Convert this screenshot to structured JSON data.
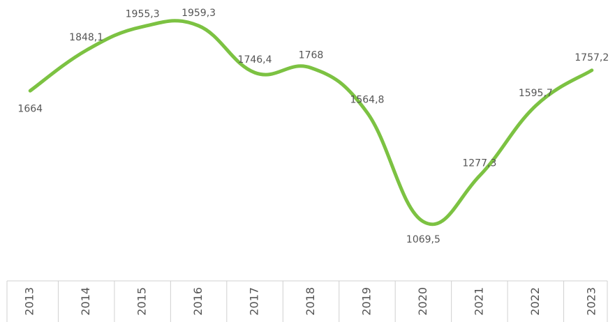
{
  "chart_data": {
    "type": "line",
    "categories": [
      "2013",
      "2014",
      "2015",
      "2016",
      "2017",
      "2018",
      "2019",
      "2020",
      "2021",
      "2022",
      "2023"
    ],
    "series": [
      {
        "color": "#7cc242",
        "values": [
          1664,
          1848.1,
          1955.3,
          1959.3,
          1746.4,
          1768,
          1564.8,
          1069.5,
          1277.3,
          1595.7,
          1757.2
        ],
        "value_labels": [
          "1664",
          "1848,1",
          "1955,3",
          "1959,3",
          "1746,4",
          "1768",
          "1564,8",
          "1069,5",
          "1277,3",
          "1595,7",
          "1757,2"
        ]
      }
    ],
    "grid": false
  }
}
